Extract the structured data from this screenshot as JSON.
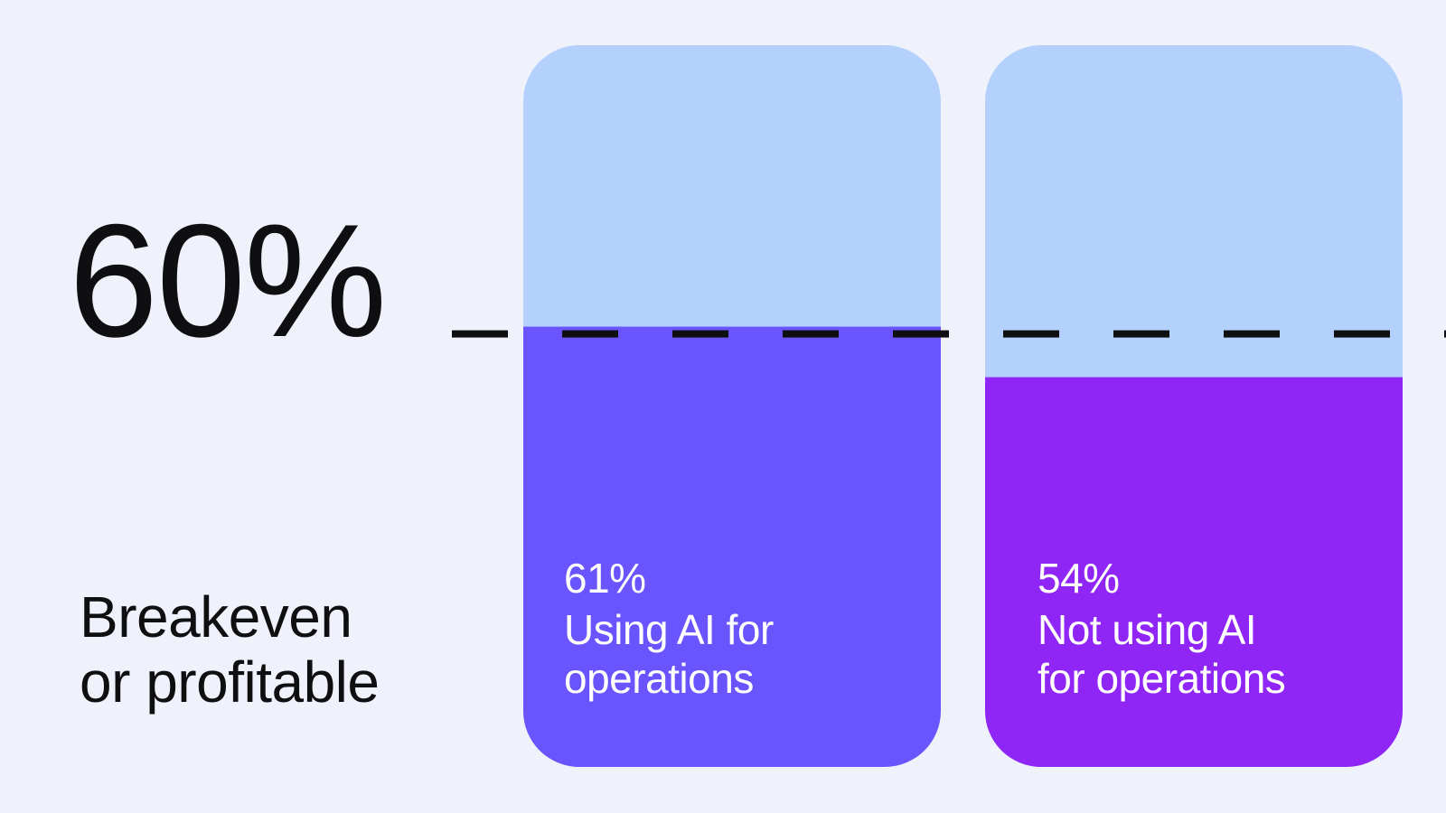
{
  "threshold": {
    "value_label": "60%",
    "caption_line1": "Breakeven",
    "caption_line2": "or profitable"
  },
  "chart_data": {
    "type": "bar",
    "title": "",
    "categories": [
      "Using AI for operations",
      "Not using AI for operations"
    ],
    "values": [
      61,
      54
    ],
    "value_labels": [
      "61%",
      "54%"
    ],
    "label_lines": [
      [
        "Using AI for",
        "operations"
      ],
      [
        "Not using AI",
        "for operations"
      ]
    ],
    "ylim": [
      0,
      100
    ],
    "reference_line": {
      "value": 60,
      "style": "dashed"
    },
    "grid": false,
    "colors": {
      "bar_track": "#b3d1fc",
      "bar_0": "#6a54fd",
      "bar_1": "#9026f5",
      "reference_line": "#0f0f12",
      "background": "#eff1fb"
    }
  }
}
